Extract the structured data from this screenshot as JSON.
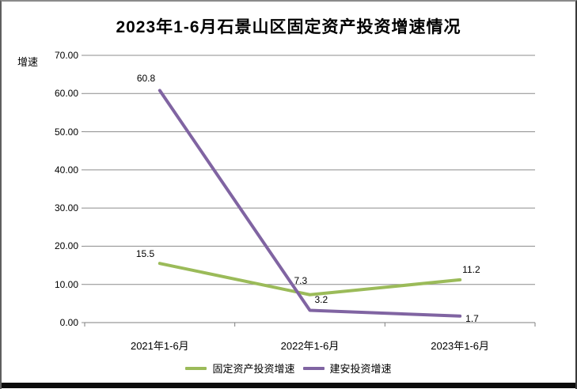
{
  "chart_data": {
    "type": "line",
    "title": "2023年1-6月石景山区固定资产投资增速情况",
    "ylabel": "增速",
    "xlabel": "",
    "categories": [
      "2021年1-6月",
      "2022年1-6月",
      "2023年1-6月"
    ],
    "series": [
      {
        "name": "固定资产投资增速",
        "color": "#9BBB59",
        "values": [
          15.5,
          7.3,
          11.2
        ],
        "labels": [
          "15.5",
          "7.3",
          "11.2"
        ]
      },
      {
        "name": "建安投资增速",
        "color": "#8064A2",
        "values": [
          60.8,
          3.2,
          1.7
        ],
        "labels": [
          "60.8",
          "3.2",
          "1.7"
        ]
      }
    ],
    "ylim": [
      0,
      70
    ],
    "ytick_step": 10,
    "ytick_labels": [
      "0.00",
      "10.00",
      "20.00",
      "30.00",
      "40.00",
      "50.00",
      "60.00",
      "70.00"
    ],
    "grid": true,
    "gridline_color": "#8c8c8c",
    "axis_color": "#7f7f7f",
    "legend_position": "bottom"
  }
}
